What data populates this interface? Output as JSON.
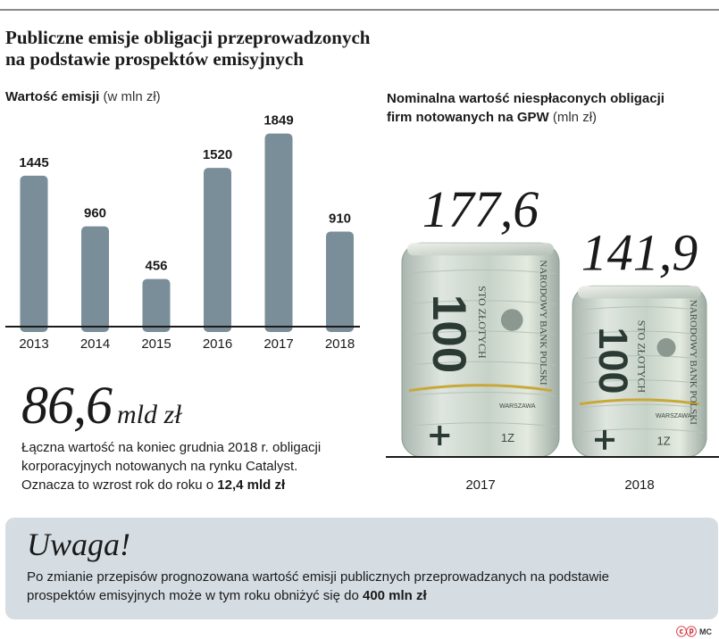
{
  "title_line1": "Publiczne emisje obligacji przeprowadzonych",
  "title_line2": "na podstawie prospektów emisyjnych",
  "left_chart_label": "Wartość emisji",
  "left_chart_unit": "(w mln zł)",
  "right_chart_label_line1": "Nominalna wartość niespłaconych obligacji",
  "right_chart_label_line2": "firm notowanych na GPW",
  "right_chart_unit": "(mln zł)",
  "chart_data": [
    {
      "type": "bar",
      "title": "Wartość emisji (w mln zł)",
      "categories": [
        "2013",
        "2014",
        "2015",
        "2016",
        "2017",
        "2018"
      ],
      "values": [
        1445,
        960,
        456,
        1520,
        1849,
        910
      ],
      "ylim": [
        0,
        2000
      ],
      "grid": false,
      "bar_color": "#7a8e99"
    },
    {
      "type": "bar",
      "title": "Nominalna wartość niespłaconych obligacji firm notowanych na GPW (mln zł)",
      "categories": [
        "2017",
        "2018"
      ],
      "values": [
        177.6,
        141.9
      ],
      "value_labels": [
        "177,6",
        "141,9"
      ],
      "ylim": [
        0,
        200
      ],
      "grid": false
    }
  ],
  "highlight": {
    "value": "86,6",
    "unit": "mld zł",
    "desc_line1": "Łączna wartość na koniec grudnia 2018 r. obligacji",
    "desc_line2": "korporacyjnych notowanych na rynku Catalyst.",
    "desc_line3_prefix": "Oznacza to wzrost rok do roku o",
    "desc_line3_bold": "12,4 mld zł"
  },
  "notice": {
    "title": "Uwaga!",
    "line1": "Po zmianie przepisów prognozowana wartość emisji publicznych przeprowadzanych na podstawie",
    "line2_prefix": "prospektów emisyjnych może w tym roku obniżyć się do",
    "line2_bold": "400 mln zł"
  },
  "credit": {
    "logo": "ⓒⓟ",
    "author": "MC"
  },
  "banknote": {
    "denomination": "100",
    "words": "STO ZŁOTYCH",
    "bank": "NARODOWY BANK POLSKI",
    "city_date": "WARSZAWA",
    "serial": "1Z"
  }
}
